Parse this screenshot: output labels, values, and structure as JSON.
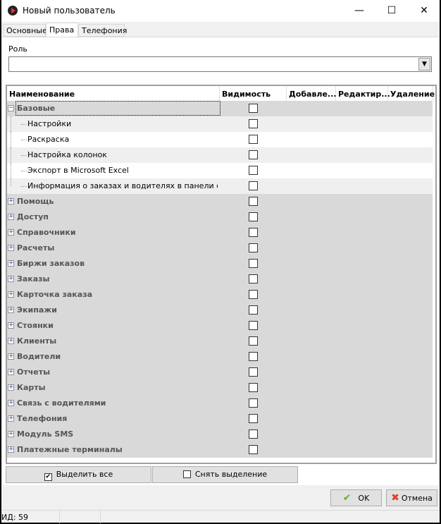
{
  "window": {
    "title": "Новый пользователь",
    "minimize": "—",
    "maximize": "☐",
    "close": "✕"
  },
  "tabs": [
    {
      "label": "Основные"
    },
    {
      "label": "Права",
      "active": true
    },
    {
      "label": "Телефония"
    }
  ],
  "role": {
    "label": "Роль",
    "value": ""
  },
  "grid": {
    "columns": [
      "Наименование",
      "Видимость",
      "Добавле...",
      "Редактир...",
      "Удаление"
    ],
    "rows": [
      {
        "label": "Базовые",
        "group": true,
        "expanded": true,
        "checked": false
      },
      {
        "label": "Настройки",
        "group": false,
        "checked": false
      },
      {
        "label": "Раскраска",
        "group": false,
        "checked": false
      },
      {
        "label": "Настройка колонок",
        "group": false,
        "checked": false
      },
      {
        "label": "Экспорт в Microsoft Excel",
        "group": false,
        "checked": false
      },
      {
        "label": "Информация о заказах и водителях в панели статуса",
        "group": false,
        "checked": false
      },
      {
        "label": "Помощь",
        "group": true,
        "checked": false
      },
      {
        "label": "Доступ",
        "group": true,
        "checked": false
      },
      {
        "label": "Справочники",
        "group": true,
        "checked": false
      },
      {
        "label": "Расчеты",
        "group": true,
        "checked": false
      },
      {
        "label": "Биржи заказов",
        "group": true,
        "checked": false
      },
      {
        "label": "Заказы",
        "group": true,
        "checked": false
      },
      {
        "label": "Карточка заказа",
        "group": true,
        "checked": false
      },
      {
        "label": "Экипажи",
        "group": true,
        "checked": false
      },
      {
        "label": "Стоянки",
        "group": true,
        "checked": false
      },
      {
        "label": "Клиенты",
        "group": true,
        "checked": false
      },
      {
        "label": "Водители",
        "group": true,
        "checked": false
      },
      {
        "label": "Отчеты",
        "group": true,
        "checked": false
      },
      {
        "label": "Карты",
        "group": true,
        "checked": false
      },
      {
        "label": "Связь с водителями",
        "group": true,
        "checked": false
      },
      {
        "label": "Телефония",
        "group": true,
        "checked": false
      },
      {
        "label": "Модуль SMS",
        "group": true,
        "checked": false
      },
      {
        "label": "Платежные терминалы",
        "group": true,
        "checked": false
      }
    ]
  },
  "actions": {
    "select_all": "Выделить все",
    "deselect": "Снять выделение"
  },
  "footer": {
    "ok": "OK",
    "cancel": "Отмена"
  },
  "status": {
    "id": "ИД: 59"
  },
  "colors": {
    "ok_icon": "#5cb82e",
    "cancel_icon": "#e0402a",
    "group_row": "#d9d9d9"
  }
}
